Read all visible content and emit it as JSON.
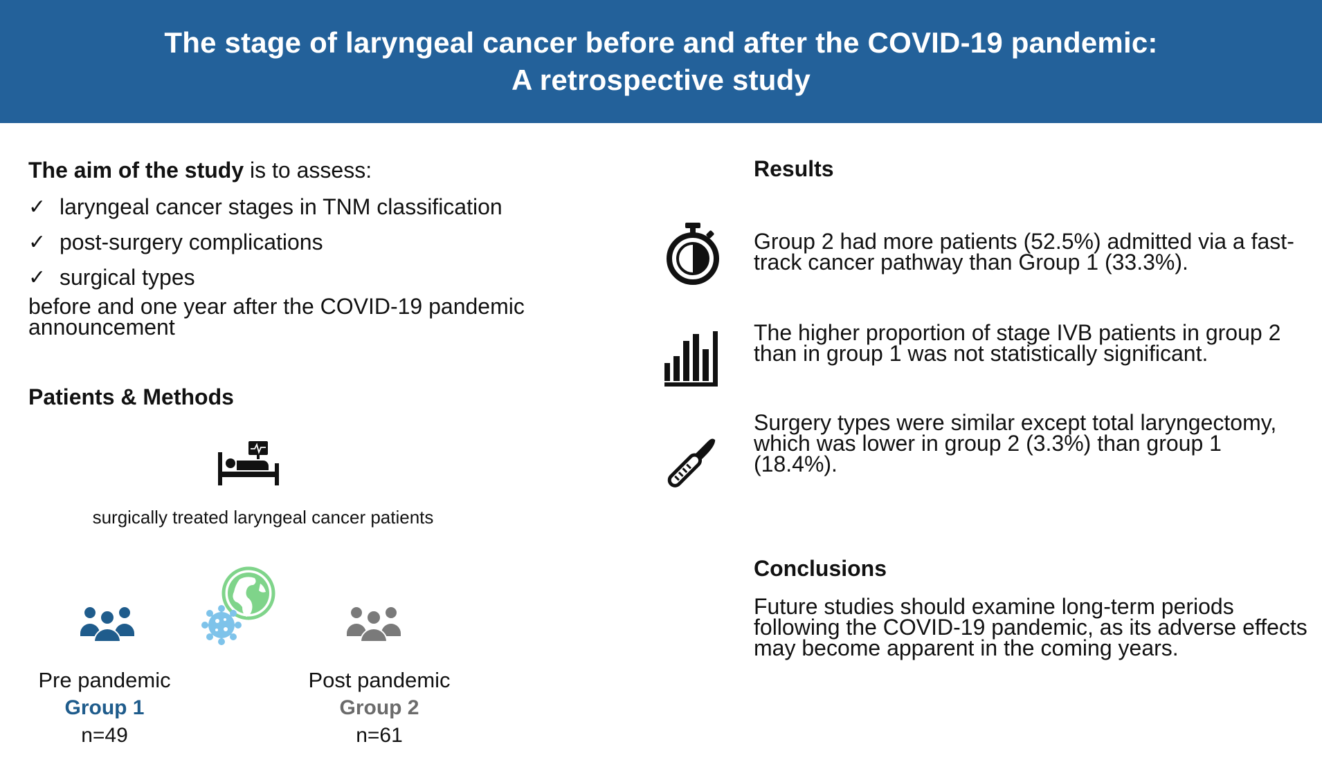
{
  "header": {
    "title_line1": "The stage of laryngeal cancer before and after the COVID-19 pandemic:",
    "title_line2": "A retrospective study",
    "background": "#23619a"
  },
  "aim": {
    "lead_bold": "The aim of the study",
    "lead_rest": " is to assess:",
    "items": [
      "laryngeal cancer stages in TNM classification",
      "post-surgery complications",
      "surgical types"
    ],
    "tail": "before and one year after the COVID-19 pandemic announcement"
  },
  "patients_methods": {
    "heading": "Patients & Methods",
    "icon": "hospital-bed-icon",
    "caption": "surgically treated laryngeal cancer patients",
    "groups": [
      {
        "period": "Pre pandemic",
        "name": "Group 1",
        "n": "n=49",
        "color": "#1f5c8c",
        "icon": "people-group-icon"
      },
      {
        "period": "Post pandemic",
        "name": "Group 2",
        "n": "n=61",
        "color": "#6b6b6b",
        "icon": "people-group-icon"
      }
    ],
    "divider_icon": "globe-virus-icon"
  },
  "results": {
    "heading": "Results",
    "items": [
      {
        "icon": "stopwatch-icon",
        "text": "Group 2 had more patients (52.5%) admitted via a fast-track cancer pathway than Group 1 (33.3%)."
      },
      {
        "icon": "bar-chart-icon",
        "text": "The higher proportion of stage IVB patients in group 2 than in group 1 was not statistically significant."
      },
      {
        "icon": "scalpel-icon",
        "text": "Surgery types were similar except total laryngectomy, which was lower in group 2 (3.3%) than group 1 (18.4%)."
      }
    ]
  },
  "conclusions": {
    "heading": "Conclusions",
    "text": "Future studies should examine long-term periods following the COVID-19 pandemic, as its adverse effects may become apparent in the coming years."
  }
}
